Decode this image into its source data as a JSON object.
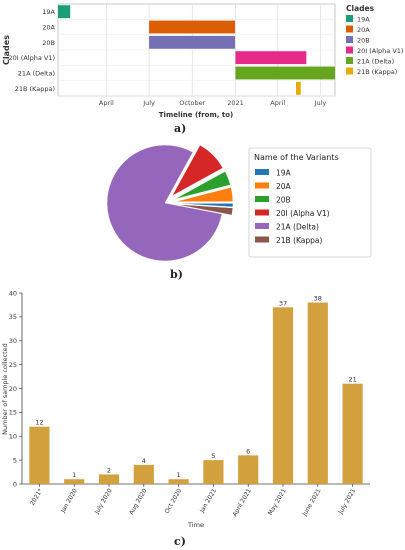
{
  "panel_labels": [
    "a)",
    "b)",
    "c)"
  ],
  "chart_data": [
    {
      "type": "bar",
      "subtype": "gantt",
      "title": "",
      "xlabel": "Timeline (from, to)",
      "ylabel": "Clades",
      "x_ticks": [
        "April",
        "July",
        "October",
        "2021",
        "April",
        "July"
      ],
      "x_tick_dates": [
        "2020-04-01",
        "2020-07-01",
        "2020-10-01",
        "2021-01-01",
        "2021-04-01",
        "2021-07-01"
      ],
      "xlim": [
        "2019-12-20",
        "2021-08-01"
      ],
      "grid": true,
      "legend": {
        "title": "Clades",
        "placement": "right"
      },
      "series": [
        {
          "name": "19A",
          "from": "2019-12-20",
          "to": "2020-01-15",
          "color": "#1b9e77"
        },
        {
          "name": "20A",
          "from": "2020-07-01",
          "to": "2020-12-31",
          "color": "#d95f02"
        },
        {
          "name": "20B",
          "from": "2020-07-01",
          "to": "2020-12-31",
          "color": "#7570b3"
        },
        {
          "name": "20I (Alpha V1)",
          "from": "2021-01-01",
          "to": "2021-06-01",
          "color": "#e7298a"
        },
        {
          "name": "21A (Delta)",
          "from": "2021-01-01",
          "to": "2021-08-01",
          "color": "#66a61e"
        },
        {
          "name": "21B (Kappa)",
          "from": "2021-05-10",
          "to": "2021-05-20",
          "color": "#e6ab02"
        }
      ]
    },
    {
      "type": "pie",
      "title": "",
      "legend": {
        "title": "Name of the Variants",
        "placement": "right"
      },
      "slices": [
        {
          "name": "19A",
          "value": 1,
          "color": "#1f77b4",
          "explode": true
        },
        {
          "name": "20A",
          "value": 4,
          "color": "#ff7f0e",
          "explode": true
        },
        {
          "name": "20B",
          "value": 4,
          "color": "#2ca02c",
          "explode": true
        },
        {
          "name": "20I (Alpha V1)",
          "value": 9,
          "color": "#d62728",
          "explode": true
        },
        {
          "name": "21A (Delta)",
          "value": 80,
          "color": "#9467bd",
          "explode": false
        },
        {
          "name": "21B (Kappa)",
          "value": 2,
          "color": "#8c564b",
          "explode": true
        }
      ]
    },
    {
      "type": "bar",
      "title": "",
      "xlabel": "Time",
      "ylabel": "Number of sample collected",
      "ylim": [
        0,
        40
      ],
      "y_ticks": [
        0,
        5,
        10,
        15,
        20,
        25,
        30,
        35,
        40
      ],
      "categories": [
        "2021*",
        "Jan 2020",
        "July 2020",
        "Aug 2020",
        "Oct 2020",
        "Jan 2021",
        "April 2021",
        "May 2021",
        "June 2021",
        "July 2021"
      ],
      "values": [
        12,
        1,
        2,
        4,
        1,
        5,
        6,
        37,
        38,
        21
      ],
      "color": "#d2a03c"
    }
  ]
}
